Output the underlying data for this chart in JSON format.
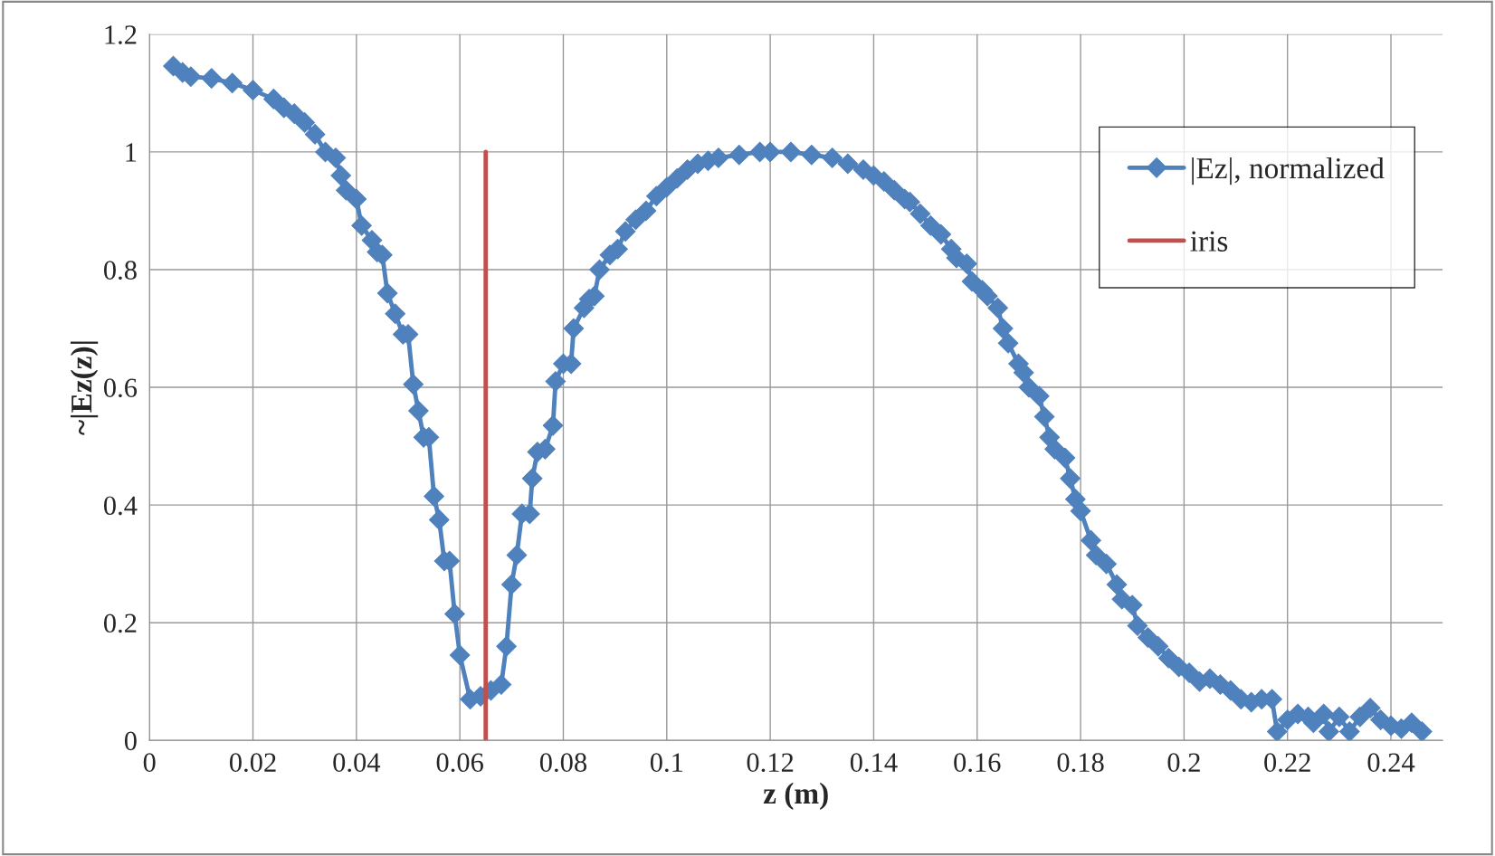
{
  "chart_data": {
    "type": "line",
    "xlabel": "z (m)",
    "ylabel": "~|Ez(z)|",
    "xlim": [
      0,
      0.25
    ],
    "xticks": [
      0,
      0.02,
      0.04,
      0.06,
      0.08,
      0.1,
      0.12,
      0.14,
      0.16,
      0.18,
      0.2,
      0.22,
      0.24
    ],
    "ylim": [
      0,
      1.2
    ],
    "yticks": [
      0,
      0.2,
      0.4,
      0.6,
      0.8,
      1,
      1.2
    ],
    "grid": true,
    "legend": "top right",
    "series": [
      {
        "name": "|Ez|, normalized",
        "color": "#4f81bd",
        "marker": "diamond",
        "line_style": "solid",
        "x": [
          0.0046,
          0.0064,
          0.008,
          0.012,
          0.016,
          0.02,
          0.024,
          0.026,
          0.028,
          0.03,
          0.032,
          0.034,
          0.036,
          0.037,
          0.038,
          0.04,
          0.041,
          0.043,
          0.044,
          0.045,
          0.046,
          0.0475,
          0.049,
          0.05,
          0.051,
          0.052,
          0.053,
          0.054,
          0.055,
          0.056,
          0.057,
          0.058,
          0.059,
          0.06,
          0.062,
          0.064,
          0.066,
          0.068,
          0.069,
          0.07,
          0.071,
          0.072,
          0.0735,
          0.074,
          0.075,
          0.0765,
          0.078,
          0.0785,
          0.08,
          0.0815,
          0.082,
          0.084,
          0.085,
          0.086,
          0.087,
          0.089,
          0.0905,
          0.092,
          0.094,
          0.096,
          0.098,
          0.1,
          0.102,
          0.104,
          0.106,
          0.108,
          0.11,
          0.114,
          0.118,
          0.12,
          0.124,
          0.128,
          0.132,
          0.135,
          0.138,
          0.14,
          0.142,
          0.144,
          0.146,
          0.147,
          0.149,
          0.151,
          0.153,
          0.155,
          0.156,
          0.158,
          0.159,
          0.161,
          0.162,
          0.164,
          0.165,
          0.166,
          0.168,
          0.169,
          0.17,
          0.172,
          0.173,
          0.174,
          0.175,
          0.177,
          0.178,
          0.179,
          0.18,
          0.182,
          0.183,
          0.185,
          0.187,
          0.188,
          0.19,
          0.191,
          0.193,
          0.195,
          0.197,
          0.199,
          0.201,
          0.203,
          0.205,
          0.207,
          0.209,
          0.211,
          0.213,
          0.215,
          0.217,
          0.218,
          0.22,
          0.222,
          0.224,
          0.225,
          0.227,
          0.228,
          0.23,
          0.232,
          0.234,
          0.236,
          0.238,
          0.24,
          0.242,
          0.244,
          0.246
        ],
        "values": [
          1.146,
          1.135,
          1.128,
          1.125,
          1.117,
          1.105,
          1.09,
          1.075,
          1.065,
          1.05,
          1.03,
          1.0,
          0.99,
          0.96,
          0.935,
          0.92,
          0.875,
          0.85,
          0.83,
          0.825,
          0.76,
          0.725,
          0.69,
          0.69,
          0.605,
          0.56,
          0.515,
          0.515,
          0.415,
          0.375,
          0.305,
          0.305,
          0.215,
          0.145,
          0.07,
          0.075,
          0.085,
          0.095,
          0.16,
          0.265,
          0.315,
          0.385,
          0.385,
          0.445,
          0.49,
          0.495,
          0.535,
          0.61,
          0.64,
          0.64,
          0.7,
          0.735,
          0.75,
          0.755,
          0.8,
          0.825,
          0.835,
          0.865,
          0.885,
          0.9,
          0.925,
          0.94,
          0.955,
          0.97,
          0.98,
          0.985,
          0.99,
          0.995,
          1.0,
          1.0,
          1.0,
          0.995,
          0.99,
          0.98,
          0.97,
          0.96,
          0.95,
          0.935,
          0.92,
          0.915,
          0.895,
          0.875,
          0.86,
          0.835,
          0.82,
          0.81,
          0.78,
          0.765,
          0.755,
          0.735,
          0.7,
          0.675,
          0.64,
          0.625,
          0.6,
          0.585,
          0.55,
          0.515,
          0.495,
          0.48,
          0.445,
          0.41,
          0.39,
          0.34,
          0.315,
          0.3,
          0.265,
          0.24,
          0.23,
          0.195,
          0.175,
          0.16,
          0.14,
          0.125,
          0.115,
          0.1,
          0.105,
          0.095,
          0.085,
          0.07,
          0.065,
          0.07,
          0.07,
          0.015,
          0.035,
          0.045,
          0.04,
          0.03,
          0.045,
          0.015,
          0.04,
          0.015,
          0.04,
          0.055,
          0.035,
          0.025,
          0.02,
          0.03,
          0.015
        ]
      },
      {
        "name": "iris",
        "color": "#c0504d",
        "marker": "none",
        "line_style": "solid",
        "x": [
          0.065,
          0.065
        ],
        "values": [
          0,
          1
        ]
      }
    ]
  }
}
